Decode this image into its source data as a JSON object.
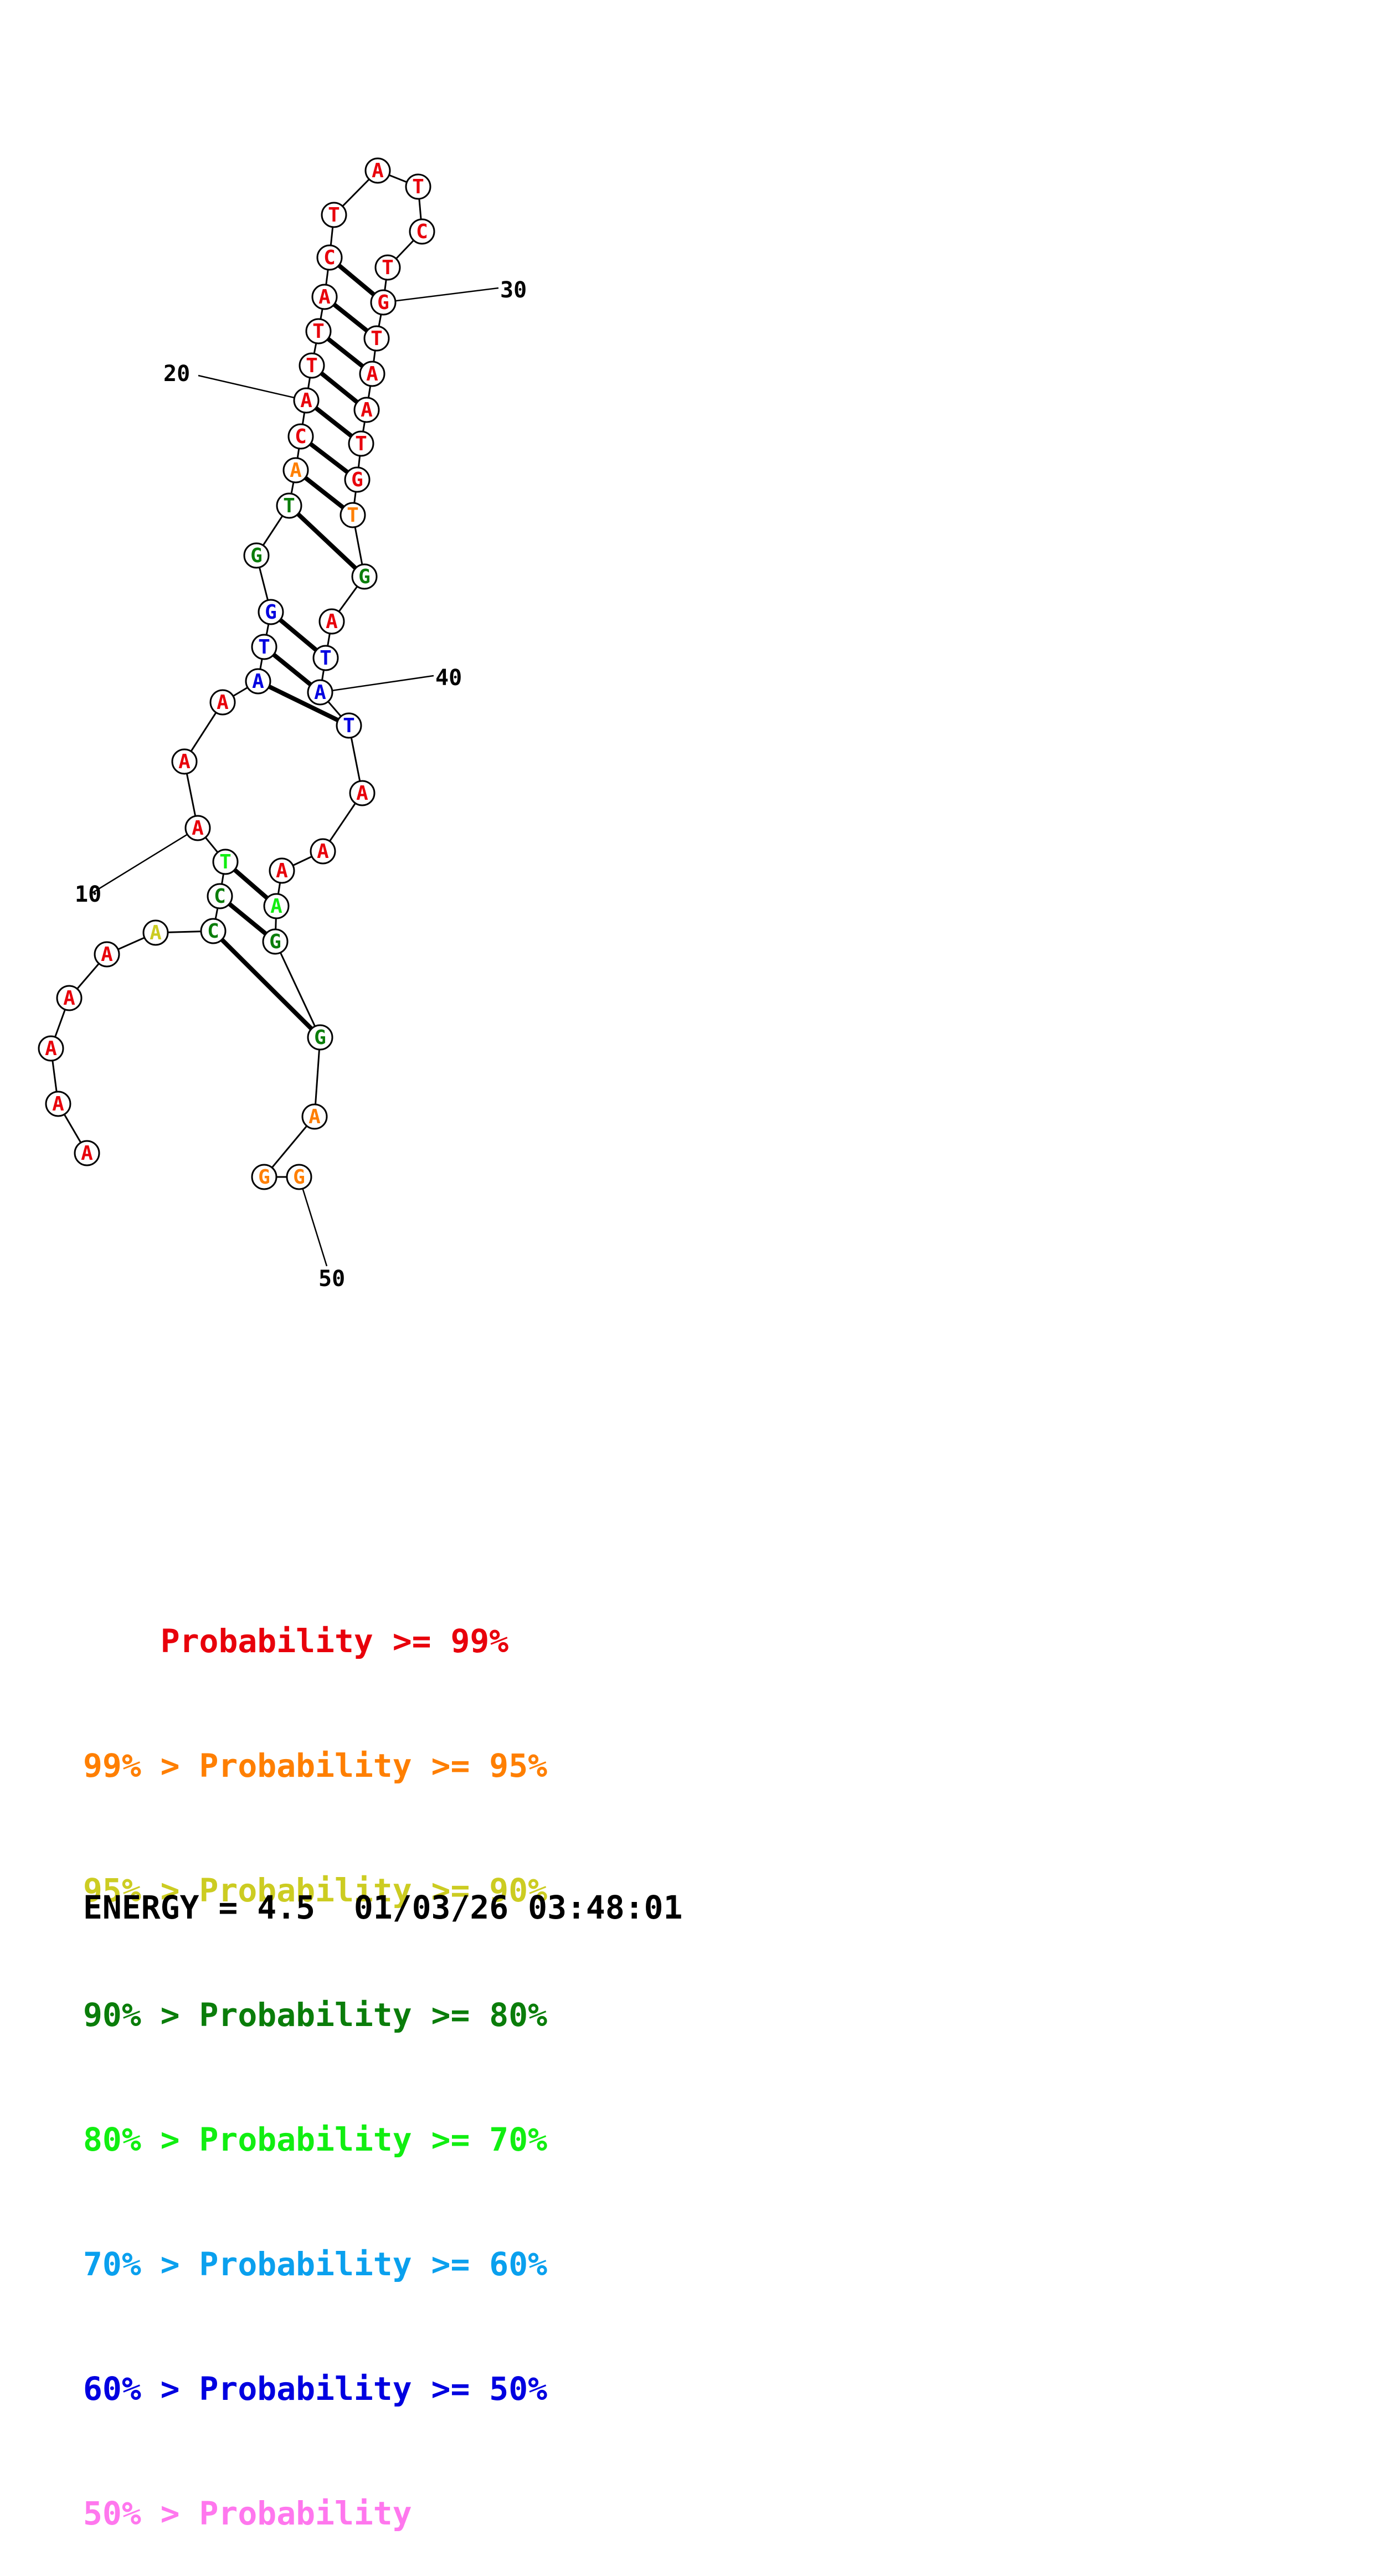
{
  "sequence": [
    "A",
    "A",
    "A",
    "A",
    "A",
    "A",
    "C",
    "C",
    "T",
    "A",
    "A",
    "A",
    "A",
    "T",
    "G",
    "G",
    "T",
    "A",
    "C",
    "A",
    "T",
    "T",
    "A",
    "C",
    "T",
    "A",
    "T",
    "C",
    "T",
    "G",
    "T",
    "A",
    "A",
    "T",
    "G",
    "T",
    "G",
    "A",
    "T",
    "A",
    "T",
    "A",
    "A",
    "A",
    "A",
    "G",
    "G",
    "A",
    "G",
    "G"
  ],
  "nucleotide_colors": [
    "#e8000b",
    "#e8000b",
    "#e8000b",
    "#e8000b",
    "#e8000b",
    "#cccc22",
    "#0a7d0a",
    "#0a7d0a",
    "#11ee11",
    "#e8000b",
    "#e8000b",
    "#e8000b",
    "#0000e0",
    "#0000e0",
    "#0000e0",
    "#0a7d0a",
    "#0a7d0a",
    "#ff7f00",
    "#e8000b",
    "#e8000b",
    "#e8000b",
    "#e8000b",
    "#e8000b",
    "#e8000b",
    "#e8000b",
    "#e8000b",
    "#e8000b",
    "#e8000b",
    "#e8000b",
    "#e8000b",
    "#e8000b",
    "#e8000b",
    "#e8000b",
    "#e8000b",
    "#e8000b",
    "#ff7f00",
    "#0a7d0a",
    "#e8000b",
    "#0000e0",
    "#0000e0",
    "#0000e0",
    "#e8000b",
    "#e8000b",
    "#e8000b",
    "#11ee11",
    "#0a7d0a",
    "#0a7d0a",
    "#ff7f00",
    "#ff7f00",
    "#ff7f00"
  ],
  "base_pairs": [
    [
      7,
      47
    ],
    [
      8,
      46
    ],
    [
      9,
      45
    ],
    [
      13,
      41
    ],
    [
      14,
      40
    ],
    [
      15,
      39
    ],
    [
      17,
      37
    ],
    [
      18,
      36
    ],
    [
      19,
      35
    ],
    [
      20,
      34
    ],
    [
      21,
      33
    ],
    [
      22,
      32
    ],
    [
      23,
      31
    ],
    [
      24,
      30
    ]
  ],
  "index_labels": [
    "10",
    "20",
    "30",
    "40",
    "50"
  ],
  "legend": [
    {
      "prefix": "    ",
      "text": "Probability >= 99%",
      "color": "#e8000b"
    },
    {
      "prefix": "99% > ",
      "text": "Probability >= 95%",
      "color": "#ff7f00"
    },
    {
      "prefix": "95% > ",
      "text": "Probability >= 90%",
      "color": "#cccc22"
    },
    {
      "prefix": "90% > ",
      "text": "Probability >= 80%",
      "color": "#0a7d0a"
    },
    {
      "prefix": "80% > ",
      "text": "Probability >= 70%",
      "color": "#11ee11"
    },
    {
      "prefix": "70% > ",
      "text": "Probability >= 60%",
      "color": "#0aa0ee"
    },
    {
      "prefix": "60% > ",
      "text": "Probability >= 50%",
      "color": "#0000e0"
    },
    {
      "prefix": "50% > ",
      "text": "Probability",
      "color": "#ff77ee"
    }
  ],
  "energy": {
    "label": "ENERGY = 4.5",
    "timestamp": "01/03/26 03:48:01"
  }
}
